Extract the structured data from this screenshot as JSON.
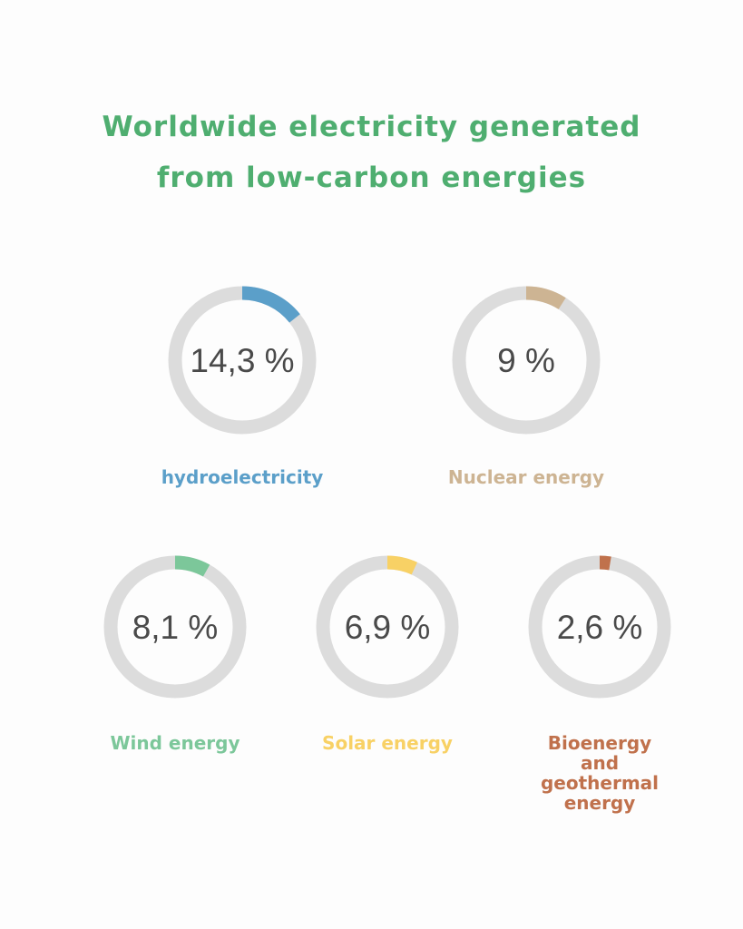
{
  "title": {
    "line1": "Worldwide electricity generated",
    "line2": "from low-carbon energies"
  },
  "colors": {
    "title": "#4fae70",
    "track": "#dcdcdc",
    "value_text": "#4a4a4a"
  },
  "chart_data": {
    "type": "pie",
    "title": "Worldwide electricity generated from low-carbon energies",
    "unit": "%",
    "series": [
      {
        "name": "hydroelectricity",
        "value": 14.3,
        "value_label": "14,3 %",
        "color": "#5b9fc9"
      },
      {
        "name": "Nuclear energy",
        "value": 9,
        "value_label": "9 %",
        "color": "#cdb493"
      },
      {
        "name": "Wind energy",
        "value": 8.1,
        "value_label": "8,1 %",
        "color": "#7cc79a"
      },
      {
        "name": "Solar energy",
        "value": 6.9,
        "value_label": "6,9 %",
        "color": "#f8d165"
      },
      {
        "name": "Bioenergy and geothermal energy",
        "value": 2.6,
        "value_label": "2,6 %",
        "color": "#c0714c"
      }
    ]
  }
}
